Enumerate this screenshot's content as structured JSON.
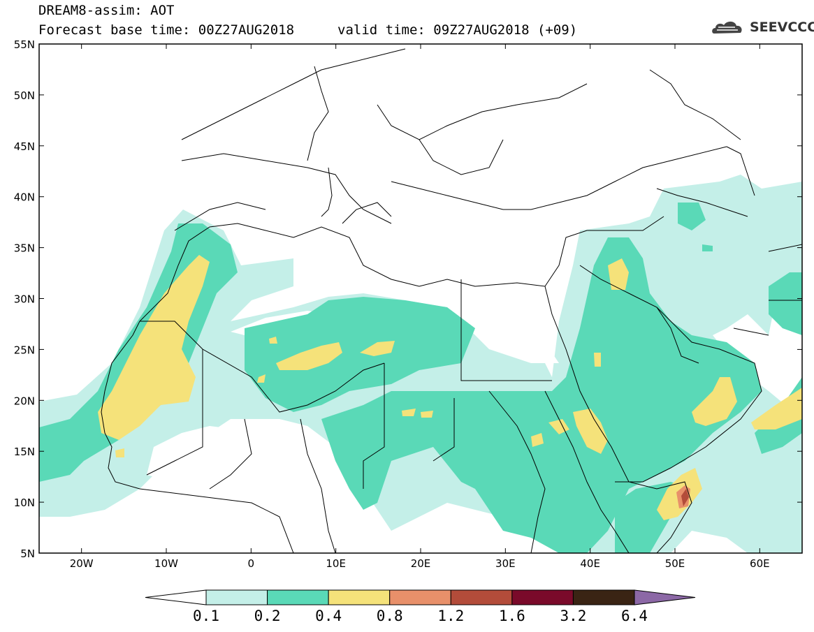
{
  "header": {
    "title": "DREAM8-assim: AOT",
    "base_time": "Forecast base time: 00Z27AUG2018",
    "valid_time": "valid time: 09Z27AUG2018 (+09)"
  },
  "logo": {
    "text": "SEEVCCC",
    "icon": "cloud-logo-icon"
  },
  "map": {
    "region": "Europe, North Africa, Middle East",
    "lat_labels": [
      "55N",
      "50N",
      "45N",
      "40N",
      "35N",
      "30N",
      "25N",
      "20N",
      "15N",
      "10N",
      "5N"
    ],
    "lon_labels": [
      "20W",
      "10W",
      "0",
      "10E",
      "20E",
      "30E",
      "40E",
      "50E",
      "60E"
    ]
  },
  "colorbar": {
    "labels": [
      "0.1",
      "0.2",
      "0.4",
      "0.8",
      "1.2",
      "1.6",
      "3.2",
      "6.4"
    ],
    "colors": [
      "#ffffff",
      "#c4efe8",
      "#5ad9b7",
      "#f5e27a",
      "#e8906a",
      "#b34c3a",
      "#7a0a2a",
      "#3a2414",
      "#8c68a6"
    ]
  },
  "colors": {
    "aot_01_02": "#c4efe8",
    "aot_02_04": "#5ad9b7",
    "aot_04_08": "#f5e27a",
    "aot_08_12": "#e8906a",
    "aot_12_16": "#b34c3a"
  }
}
